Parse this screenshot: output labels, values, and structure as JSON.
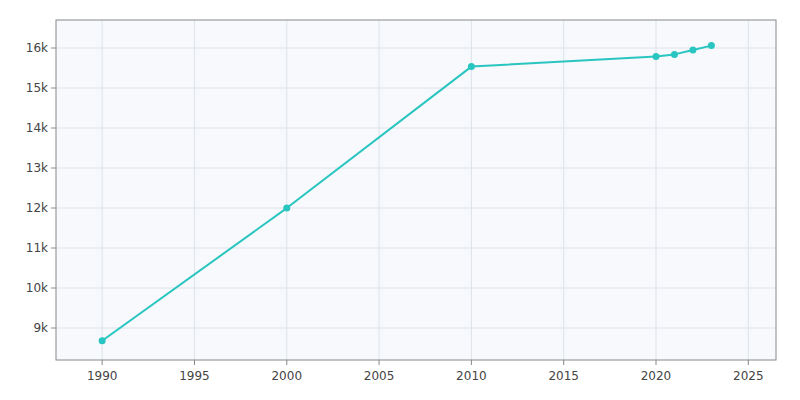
{
  "chart_data": {
    "type": "line",
    "x": [
      1990,
      2000,
      2010,
      2020,
      2021,
      2022,
      2023
    ],
    "values": [
      8680,
      11998,
      15535,
      15790,
      15840,
      15950,
      16060
    ],
    "color": "#29c5c0",
    "marker": "circle",
    "xlim": [
      1987.5,
      2026.5
    ],
    "ylim": [
      8200,
      16700
    ],
    "xticks": [
      1990,
      1995,
      2000,
      2005,
      2010,
      2015,
      2020,
      2025
    ],
    "yticks": [
      {
        "value": 9000,
        "label": "9k"
      },
      {
        "value": 10000,
        "label": "10k"
      },
      {
        "value": 11000,
        "label": "11k"
      },
      {
        "value": 12000,
        "label": "12k"
      },
      {
        "value": 13000,
        "label": "13k"
      },
      {
        "value": 14000,
        "label": "14k"
      },
      {
        "value": 15000,
        "label": "15k"
      },
      {
        "value": 16000,
        "label": "16k"
      }
    ],
    "grid": true
  }
}
